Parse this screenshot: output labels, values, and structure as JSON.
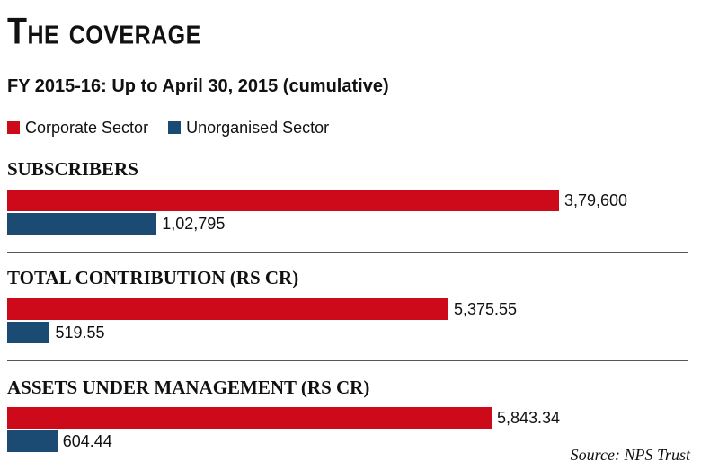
{
  "header": {
    "title": "The coverage",
    "subtitle": "FY 2015-16: Up to April 30, 2015 (cumulative)"
  },
  "legend": [
    {
      "label": "Corporate Sector",
      "color": "#cc0a1a"
    },
    {
      "label": "Unorganised Sector",
      "color": "#1b4b73"
    }
  ],
  "source": "Source: NPS Trust",
  "chart_data": [
    {
      "type": "bar",
      "orientation": "horizontal",
      "title": "SUBSCRIBERS",
      "series": [
        {
          "name": "Corporate Sector",
          "value": 379600,
          "label": "3,79,600"
        },
        {
          "name": "Unorganised Sector",
          "value": 102795,
          "label": "1,02,795"
        }
      ]
    },
    {
      "type": "bar",
      "orientation": "horizontal",
      "title": "TOTAL CONTRIBUTION (RS CR)",
      "series": [
        {
          "name": "Corporate Sector",
          "value": 5375.55,
          "label": "5,375.55"
        },
        {
          "name": "Unorganised Sector",
          "value": 519.55,
          "label": "519.55"
        }
      ]
    },
    {
      "type": "bar",
      "orientation": "horizontal",
      "title": "ASSETS UNDER MANAGEMENT (RS CR)",
      "series": [
        {
          "name": "Corporate Sector",
          "value": 5843.34,
          "label": "5,843.34"
        },
        {
          "name": "Unorganised Sector",
          "value": 604.44,
          "label": "604.44"
        }
      ]
    }
  ]
}
